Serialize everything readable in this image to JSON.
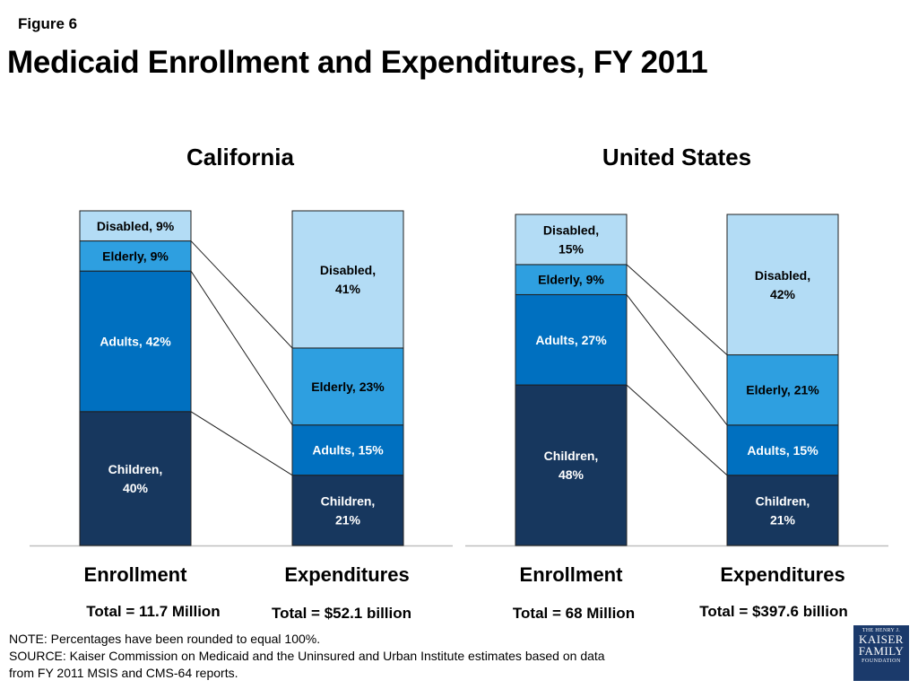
{
  "figure_label": "Figure 6",
  "title": "Medicaid Enrollment and Expenditures, FY 2011",
  "note": "NOTE: Percentages have been rounded to equal 100%.",
  "source_line1": "SOURCE:  Kaiser Commission on Medicaid and the Uninsured and Urban Institute estimates based on data",
  "source_line2": "from FY 2011 MSIS and CMS-64 reports.",
  "logo": {
    "line1": "THE HENRY J.",
    "line2": "KAISER",
    "line3": "FAMILY",
    "line4": "FOUNDATION"
  },
  "colors": {
    "children": "#17375e",
    "adults": "#0070c0",
    "elderly": "#2e9fe0",
    "disabled": "#b3dcf5"
  },
  "panels": [
    {
      "title": "California",
      "enrollment_label": "Enrollment",
      "expenditures_label": "Expenditures",
      "enrollment_total": "Total = 11.7 Million",
      "expenditures_total": "Total = $52.1 billion"
    },
    {
      "title": "United States",
      "enrollment_label": "Enrollment",
      "expenditures_label": "Expenditures",
      "enrollment_total": "Total = 68 Million",
      "expenditures_total": "Total = $397.6 billion"
    }
  ],
  "chart_data": [
    {
      "type": "bar",
      "stacked": true,
      "percent": true,
      "title": "California",
      "categories": [
        "Enrollment",
        "Expenditures"
      ],
      "series": [
        {
          "name": "Children",
          "key": "children",
          "values": [
            40,
            21
          ],
          "labels": [
            [
              "Children,",
              "40%"
            ],
            [
              "Children,",
              "21%"
            ]
          ]
        },
        {
          "name": "Adults",
          "key": "adults",
          "values": [
            42,
            15
          ],
          "labels": [
            [
              "Adults, 42%"
            ],
            [
              "Adults, 15%"
            ]
          ]
        },
        {
          "name": "Elderly",
          "key": "elderly",
          "values": [
            9,
            23
          ],
          "labels": [
            [
              "Elderly, 9%"
            ],
            [
              "Elderly, 23%"
            ]
          ]
        },
        {
          "name": "Disabled",
          "key": "disabled",
          "values": [
            9,
            41
          ],
          "labels": [
            [
              "Disabled, 9%"
            ],
            [
              "Disabled,",
              "41%"
            ]
          ]
        }
      ]
    },
    {
      "type": "bar",
      "stacked": true,
      "percent": true,
      "title": "United States",
      "categories": [
        "Enrollment",
        "Expenditures"
      ],
      "series": [
        {
          "name": "Children",
          "key": "children",
          "values": [
            48,
            21
          ],
          "labels": [
            [
              "Children,",
              "48%"
            ],
            [
              "Children,",
              "21%"
            ]
          ]
        },
        {
          "name": "Adults",
          "key": "adults",
          "values": [
            27,
            15
          ],
          "labels": [
            [
              "Adults, 27%"
            ],
            [
              "Adults, 15%"
            ]
          ]
        },
        {
          "name": "Elderly",
          "key": "elderly",
          "values": [
            9,
            21
          ],
          "labels": [
            [
              "Elderly, 9%"
            ],
            [
              "Elderly, 21%"
            ]
          ]
        },
        {
          "name": "Disabled",
          "key": "disabled",
          "values": [
            15,
            42
          ],
          "labels": [
            [
              "Disabled,",
              "15%"
            ],
            [
              "Disabled,",
              "42%"
            ]
          ]
        }
      ]
    }
  ]
}
